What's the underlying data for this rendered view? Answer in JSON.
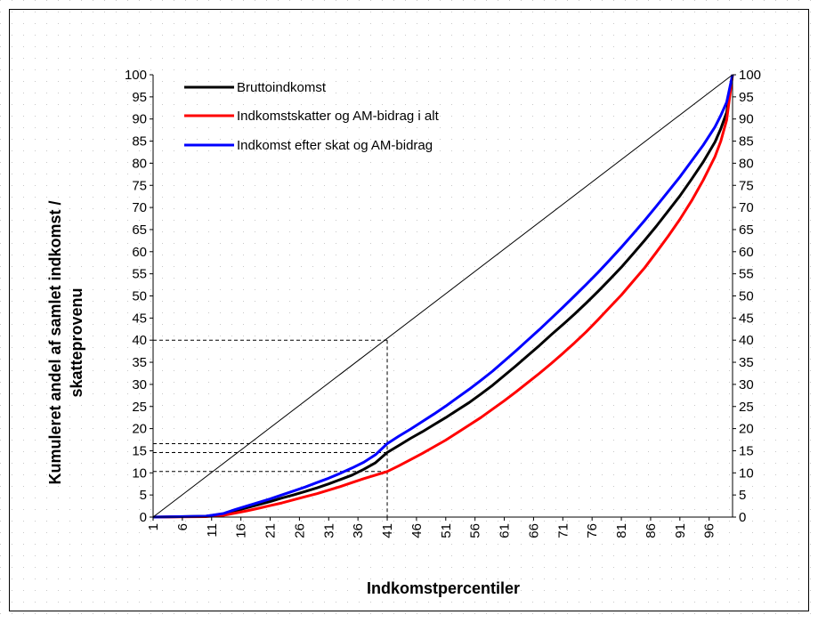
{
  "chart_data": {
    "type": "line",
    "xlabel": "Indkomstpercentiler",
    "ylabel_line1": "Kumuleret andel af samlet indkomst /",
    "ylabel_line2": "skatteprovenu",
    "xlim": [
      1,
      100
    ],
    "ylim": [
      0,
      100
    ],
    "y_ticks": [
      0,
      5,
      10,
      15,
      20,
      25,
      30,
      35,
      40,
      45,
      50,
      55,
      60,
      65,
      70,
      75,
      80,
      85,
      90,
      95,
      100
    ],
    "x_tick_labels": [
      "1",
      "6",
      "11",
      "16",
      "21",
      "26",
      "31",
      "36",
      "41",
      "46",
      "51",
      "56",
      "61",
      "66",
      "71",
      "76",
      "81",
      "86",
      "91",
      "96"
    ],
    "legend_position": "top-left",
    "grid": "dotted",
    "series": [
      {
        "name": "Bruttoindkomst",
        "color": "#000000",
        "x": [
          1,
          10,
          13,
          15,
          17,
          19,
          21,
          23,
          25,
          27,
          29,
          31,
          33,
          35,
          37,
          39,
          41,
          43,
          45,
          47,
          49,
          51,
          53,
          55,
          57,
          59,
          61,
          63,
          65,
          67,
          69,
          71,
          73,
          75,
          77,
          79,
          81,
          83,
          85,
          87,
          89,
          91,
          93,
          95,
          97,
          98,
          99,
          100
        ],
        "y": [
          0,
          0.2,
          0.7,
          1.4,
          2.1,
          2.8,
          3.5,
          4.3,
          5.0,
          5.8,
          6.6,
          7.5,
          8.5,
          9.5,
          10.8,
          12.3,
          14.6,
          16.2,
          17.8,
          19.3,
          20.9,
          22.5,
          24.2,
          25.9,
          27.8,
          29.8,
          32.0,
          34.2,
          36.5,
          38.8,
          41.2,
          43.5,
          45.9,
          48.4,
          51.0,
          53.7,
          56.5,
          59.5,
          62.6,
          65.8,
          69.2,
          72.6,
          76.4,
          80.3,
          84.8,
          87.8,
          91.5,
          100
        ]
      },
      {
        "name": "Indkomstskatter og AM-bidrag i alt",
        "color": "#ff0000",
        "x": [
          1,
          10,
          13,
          15,
          17,
          19,
          21,
          23,
          25,
          27,
          29,
          31,
          33,
          35,
          37,
          39,
          41,
          43,
          45,
          47,
          49,
          51,
          53,
          55,
          57,
          59,
          61,
          63,
          65,
          67,
          69,
          71,
          73,
          75,
          77,
          79,
          81,
          83,
          85,
          87,
          89,
          91,
          93,
          95,
          97,
          98,
          99,
          100
        ],
        "y": [
          0,
          0.1,
          0.4,
          0.9,
          1.4,
          2.0,
          2.6,
          3.2,
          3.9,
          4.6,
          5.3,
          6.1,
          6.9,
          7.8,
          8.7,
          9.5,
          10.3,
          11.6,
          13.0,
          14.4,
          15.9,
          17.4,
          19.1,
          20.8,
          22.5,
          24.4,
          26.3,
          28.3,
          30.4,
          32.5,
          34.7,
          37.0,
          39.4,
          41.9,
          44.6,
          47.4,
          50.2,
          53.3,
          56.4,
          59.9,
          63.5,
          67.3,
          71.5,
          76.2,
          81.5,
          85.0,
          89.8,
          100
        ]
      },
      {
        "name": "Indkomst efter skat og AM-bidrag",
        "color": "#0000ff",
        "x": [
          1,
          10,
          13,
          15,
          17,
          19,
          21,
          23,
          25,
          27,
          29,
          31,
          33,
          35,
          37,
          39,
          41,
          43,
          45,
          47,
          49,
          51,
          53,
          55,
          57,
          59,
          61,
          63,
          65,
          67,
          69,
          71,
          73,
          75,
          77,
          79,
          81,
          83,
          85,
          87,
          89,
          91,
          93,
          95,
          97,
          98,
          99,
          100
        ],
        "y": [
          0,
          0.2,
          0.8,
          1.7,
          2.5,
          3.3,
          4.1,
          5.0,
          5.9,
          6.8,
          7.8,
          8.8,
          9.9,
          11.1,
          12.4,
          14.1,
          16.6,
          18.3,
          19.9,
          21.6,
          23.3,
          25.1,
          27.0,
          28.9,
          30.9,
          33.0,
          35.3,
          37.6,
          40.0,
          42.4,
          44.9,
          47.4,
          50.0,
          52.6,
          55.3,
          58.1,
          61.0,
          64.0,
          67.1,
          70.3,
          73.6,
          76.9,
          80.5,
          84.1,
          88.2,
          90.8,
          93.8,
          100
        ]
      },
      {
        "name": "",
        "color": "#000000",
        "x": [
          1,
          100
        ],
        "y": [
          0,
          100
        ]
      }
    ],
    "reference_lines": {
      "vertical_at_x": 41,
      "vertical_to_y": 40,
      "horizontal_at_y": [
        40,
        16.6,
        14.6,
        10.3
      ],
      "horizontal_from_x": 1,
      "horizontal_to_x": 41
    }
  }
}
